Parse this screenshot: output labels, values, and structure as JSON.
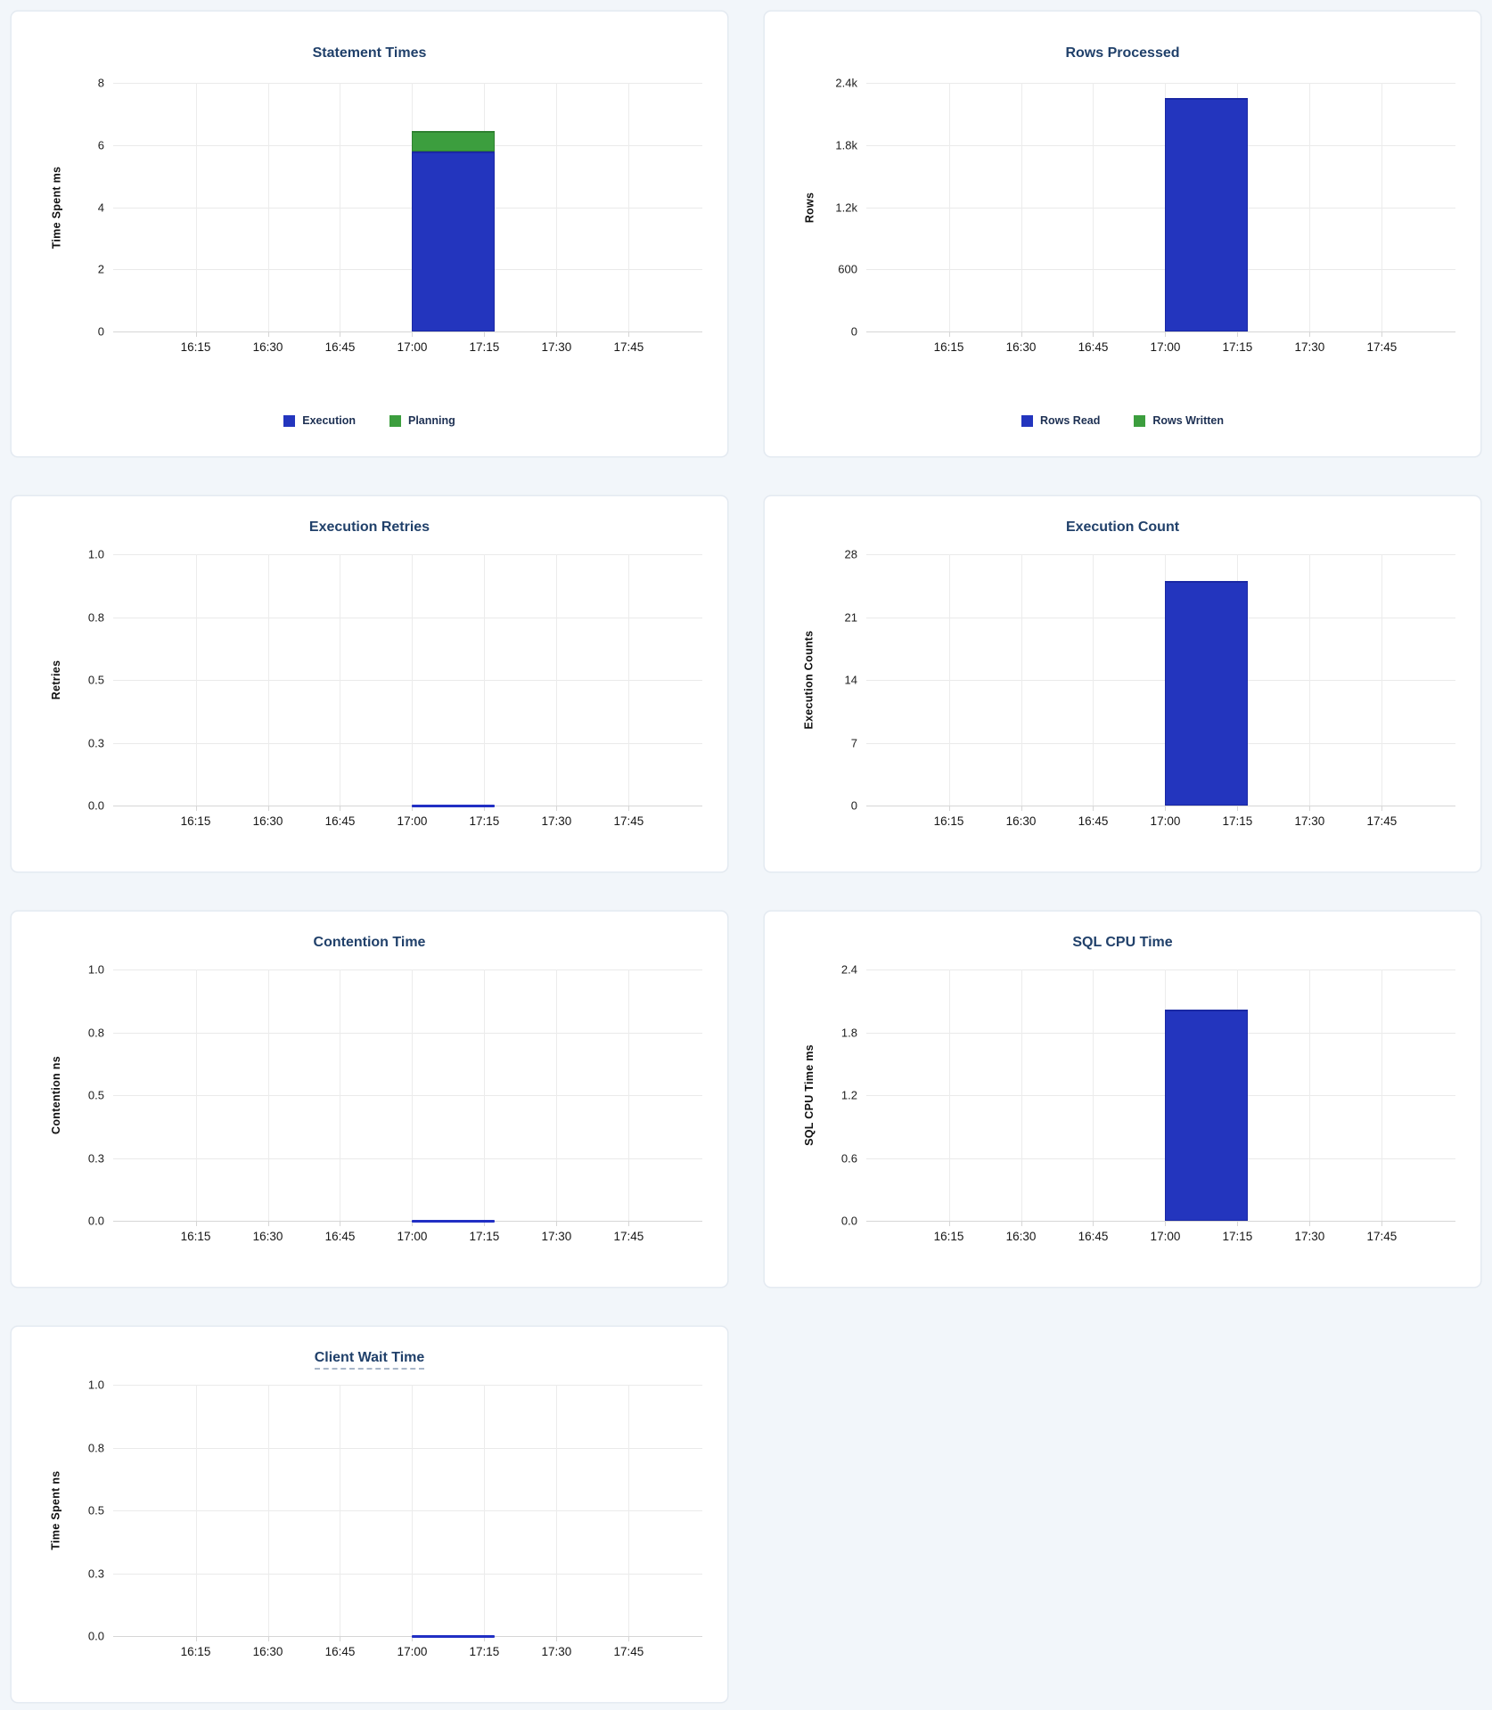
{
  "colors": {
    "page_bg": "#f2f6fa",
    "card_bg": "#ffffff",
    "card_border": "#e5ebf3",
    "title": "#20406a",
    "tick_label": "#1d1d1d",
    "axis_label": "#101010",
    "gridline": "#ececec",
    "zero_gridline": "#d6d6d6",
    "legend_label": "#1c2f52",
    "bar_blue": "#2335be",
    "bar_blue_border": "#1a28a4",
    "bar_green": "#3c9e3e",
    "bar_green_border": "#2e8030",
    "line_blue": "#212fc4"
  },
  "axes": {
    "x_ticks": [
      "16:15",
      "16:30",
      "16:45",
      "17:00",
      "17:15",
      "17:30",
      "17:45"
    ],
    "x_first_frac": 0.14,
    "x_step_frac": 0.1225,
    "data_window": {
      "start": "17:00",
      "end": "17:17",
      "start_frac": 0.5075,
      "end_frac": 0.648
    }
  },
  "chart_data": [
    {
      "id": "statement-times",
      "type": "bar",
      "title": "Statement Times",
      "ylabel": "Time Spent ms",
      "ylim": [
        0,
        8
      ],
      "yticks": [
        "8",
        "6",
        "4",
        "2",
        "0"
      ],
      "x": [
        "17:00"
      ],
      "stacked": true,
      "legend": true,
      "legend_position": "bottom-center",
      "series": [
        {
          "name": "Execution",
          "values": [
            5.78
          ],
          "color": "#2335be",
          "border": "#1a28a4"
        },
        {
          "name": "Planning",
          "values": [
            0.67
          ],
          "color": "#3c9e3e",
          "border": "#2e8030"
        }
      ]
    },
    {
      "id": "rows-processed",
      "type": "bar",
      "title": "Rows Processed",
      "ylabel": "Rows",
      "ylim": [
        0,
        2400
      ],
      "yticks": [
        "2.4k",
        "1.8k",
        "1.2k",
        "600",
        "0"
      ],
      "x": [
        "17:00"
      ],
      "stacked": true,
      "legend": true,
      "legend_position": "bottom-center",
      "series": [
        {
          "name": "Rows Read",
          "values": [
            2250
          ],
          "color": "#2335be",
          "border": "#1a28a4"
        },
        {
          "name": "Rows Written",
          "values": [
            0
          ],
          "color": "#3c9e3e",
          "border": "#2e8030"
        }
      ]
    },
    {
      "id": "execution-retries",
      "type": "line",
      "title": "Execution Retries",
      "ylabel": "Retries",
      "ylim": [
        0,
        1
      ],
      "yticks": [
        "1.0",
        "0.8",
        "0.5",
        "0.3",
        "0.0"
      ],
      "x": [
        "17:00"
      ],
      "legend": false,
      "series": [
        {
          "name": "Retries",
          "values": [
            0
          ],
          "color": "#212fc4"
        }
      ]
    },
    {
      "id": "execution-count",
      "type": "bar",
      "title": "Execution Count",
      "ylabel": "Execution Counts",
      "ylim": [
        0,
        28
      ],
      "yticks": [
        "28",
        "21",
        "14",
        "7",
        "0"
      ],
      "x": [
        "17:00"
      ],
      "stacked": false,
      "legend": false,
      "series": [
        {
          "name": "Execution Count",
          "values": [
            25
          ],
          "color": "#2335be",
          "border": "#1a28a4"
        }
      ]
    },
    {
      "id": "contention-time",
      "type": "line",
      "title": "Contention Time",
      "ylabel": "Contention ns",
      "ylim": [
        0,
        1
      ],
      "yticks": [
        "1.0",
        "0.8",
        "0.5",
        "0.3",
        "0.0"
      ],
      "x": [
        "17:00"
      ],
      "legend": false,
      "series": [
        {
          "name": "Contention",
          "values": [
            0
          ],
          "color": "#212fc4"
        }
      ]
    },
    {
      "id": "sql-cpu-time",
      "type": "bar",
      "title": "SQL CPU Time",
      "ylabel": "SQL CPU Time ms",
      "ylim": [
        0,
        2.4
      ],
      "yticks": [
        "2.4",
        "1.8",
        "1.2",
        "0.6",
        "0.0"
      ],
      "x": [
        "17:00"
      ],
      "stacked": false,
      "legend": false,
      "series": [
        {
          "name": "SQL CPU Time",
          "values": [
            2.02
          ],
          "color": "#2335be",
          "border": "#1a28a4"
        }
      ]
    },
    {
      "id": "client-wait-time",
      "type": "line",
      "title": "Client Wait Time",
      "title_tooltip_underline": true,
      "ylabel": "Time Spent ns",
      "ylim": [
        0,
        1
      ],
      "yticks": [
        "1.0",
        "0.8",
        "0.5",
        "0.3",
        "0.0"
      ],
      "x": [
        "17:00"
      ],
      "legend": false,
      "series": [
        {
          "name": "Client Wait Time",
          "values": [
            0
          ],
          "color": "#212fc4"
        }
      ]
    }
  ]
}
